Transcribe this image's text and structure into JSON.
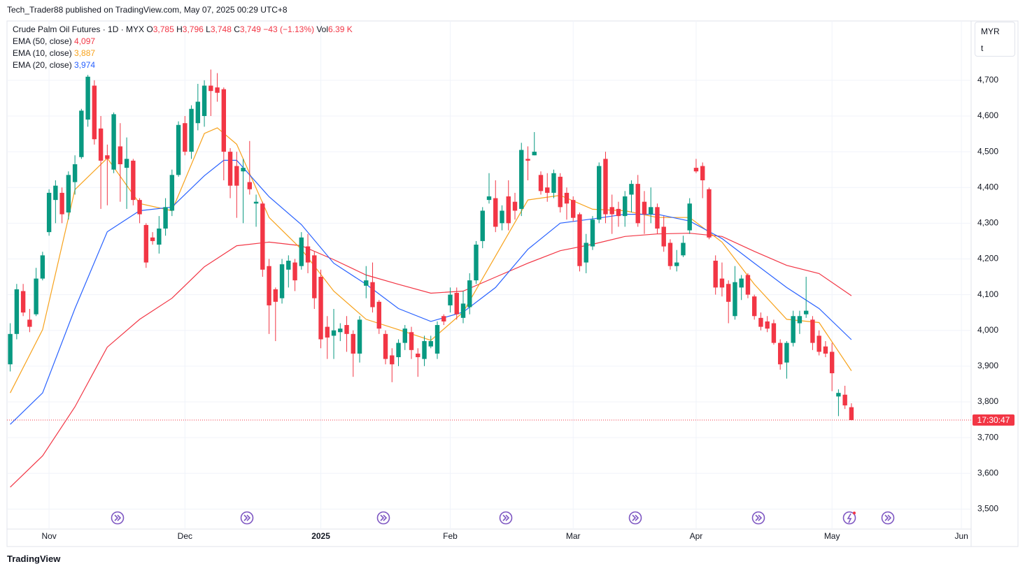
{
  "header": "Tech_Trader88 published on TradingView.com, May 07, 2025 00:29 UTC+8",
  "logo": "TradingView",
  "currency": "MYR",
  "unit": "t",
  "countdown": "17:30:47",
  "chart_data": {
    "type": "candlestick",
    "title": "Crude Palm Oil Futures · 1D · MYX",
    "legend_items": [
      {
        "key": "O",
        "value": "3,785"
      },
      {
        "key": "H",
        "value": "3,796"
      },
      {
        "key": "L",
        "value": "3,748"
      },
      {
        "key": "C",
        "value": "3,749"
      },
      {
        "value": "−43 (−1.13%)"
      },
      {
        "key": "Vol",
        "value": "6.39 K"
      }
    ],
    "up_color": "#089981",
    "down_color": "#f23645",
    "grid": true,
    "ylim": [
      3395,
      4866
    ],
    "yticks": [
      {
        "value": 3500,
        "label": "3,500"
      },
      {
        "value": 3600,
        "label": "3,600"
      },
      {
        "value": 3700,
        "label": "3,700"
      },
      {
        "value": 3800,
        "label": "3,800"
      },
      {
        "value": 3900,
        "label": "3,900"
      },
      {
        "value": 4000,
        "label": "4,000"
      },
      {
        "value": 4100,
        "label": "4,100"
      },
      {
        "value": 4200,
        "label": "4,200"
      },
      {
        "value": 4300,
        "label": "4,300"
      },
      {
        "value": 4400,
        "label": "4,400"
      },
      {
        "value": 4500,
        "label": "4,500"
      },
      {
        "value": 4600,
        "label": "4,600"
      },
      {
        "value": 4700,
        "label": "4,700"
      }
    ],
    "categories": [
      null,
      null,
      null,
      null,
      null,
      null,
      "Nov",
      null,
      null,
      null,
      null,
      null,
      null,
      null,
      null,
      null,
      null,
      null,
      null,
      null,
      null,
      null,
      null,
      null,
      null,
      null,
      null,
      "Dec",
      null,
      null,
      null,
      null,
      null,
      null,
      null,
      null,
      null,
      null,
      null,
      null,
      null,
      null,
      null,
      null,
      null,
      null,
      null,
      null,
      "2025",
      null,
      null,
      null,
      null,
      null,
      null,
      null,
      null,
      null,
      null,
      null,
      null,
      null,
      null,
      null,
      null,
      null,
      null,
      null,
      "Feb",
      null,
      null,
      null,
      null,
      null,
      null,
      null,
      null,
      null,
      null,
      null,
      null,
      null,
      null,
      null,
      null,
      null,
      null,
      "Mar",
      null,
      null,
      null,
      null,
      null,
      null,
      null,
      null,
      null,
      null,
      null,
      null,
      null,
      null,
      null,
      null,
      null,
      null,
      "Apr",
      null,
      null,
      null,
      null,
      null,
      null,
      null,
      null,
      null,
      null,
      null,
      null,
      null,
      null,
      null,
      null,
      null,
      null,
      null,
      null,
      "May",
      null,
      null,
      null,
      null,
      null,
      null,
      null,
      null,
      null,
      null,
      null,
      null,
      null,
      null,
      null,
      null,
      null,
      null,
      null,
      "Jun",
      null
    ],
    "open": [
      3905,
      3990,
      4110,
      4030,
      4045,
      4145,
      4275,
      4365,
      4385,
      4330,
      4415,
      4485,
      4590,
      4685,
      4565,
      4490,
      4450,
      4515,
      4455,
      4475,
      4365,
      4295,
      4260,
      4240,
      4285,
      4335,
      4435,
      4580,
      4500,
      4580,
      4600,
      4685,
      4680,
      4675,
      4500,
      4460,
      4445,
      4415,
      4355,
      4355,
      4180,
      4115,
      4090,
      4170,
      4190,
      4180,
      4235,
      4210,
      4150,
      4010,
      3985,
      3995,
      4015,
      3990,
      3935,
      4125,
      4135,
      4080,
      3990,
      3930,
      3925,
      3965,
      3995,
      3935,
      3920,
      3955,
      3935,
      4040,
      4070,
      4105,
      4035,
      4065,
      4140,
      4250,
      4365,
      4370,
      4300,
      4375,
      4360,
      4340,
      4480,
      4490,
      4435,
      4400,
      4385,
      4430,
      4385,
      4365,
      4325,
      4190,
      4235,
      4310,
      4480,
      4345,
      4340,
      4320,
      4380,
      4410,
      4360,
      4325,
      4345,
      4290,
      4245,
      4180,
      4210,
      4280,
      4455,
      4460,
      4395,
      4195,
      4145,
      4130,
      4040,
      4120,
      4155,
      4095,
      4035,
      4025,
      4020,
      3965,
      3910,
      3965,
      4020,
      4045,
      4030,
      3985,
      3955,
      3940,
      3815,
      3820,
      3785,
      null,
      null,
      null,
      null,
      null,
      null,
      null,
      null,
      null,
      null,
      null,
      null,
      null,
      null,
      null,
      null,
      null,
      null
    ],
    "high": [
      4020,
      4130,
      4130,
      4060,
      4175,
      4220,
      4395,
      4420,
      4400,
      4445,
      4490,
      4620,
      4715,
      4700,
      4600,
      4520,
      4610,
      4580,
      4540,
      4480,
      4370,
      4300,
      4275,
      4320,
      4370,
      4450,
      4585,
      4600,
      4630,
      4690,
      4700,
      4730,
      4720,
      4680,
      4510,
      4500,
      4480,
      4530,
      4380,
      4360,
      4200,
      4120,
      4200,
      4210,
      4200,
      4275,
      4270,
      4220,
      4170,
      4040,
      4060,
      4020,
      4040,
      4000,
      4040,
      4180,
      4190,
      4085,
      4000,
      3950,
      3975,
      4015,
      4010,
      3950,
      3985,
      3985,
      4025,
      4045,
      4120,
      4120,
      4110,
      4160,
      4250,
      4345,
      4440,
      4420,
      4350,
      4420,
      4385,
      4525,
      4515,
      4555,
      4445,
      4440,
      4450,
      4440,
      4400,
      4375,
      4330,
      4270,
      4320,
      4470,
      4500,
      4380,
      4360,
      4390,
      4420,
      4435,
      4390,
      4400,
      4355,
      4320,
      4255,
      4225,
      4265,
      4370,
      4480,
      4470,
      4400,
      4210,
      4190,
      4140,
      4180,
      4155,
      4160,
      4100,
      4050,
      4040,
      4030,
      3975,
      3970,
      4055,
      4055,
      4150,
      4040,
      4000,
      3970,
      3965,
      3835,
      3845,
      3796,
      null,
      null,
      null,
      null,
      null,
      null,
      null,
      null,
      null,
      null,
      null,
      null,
      null,
      null,
      null,
      null,
      null,
      null
    ],
    "low": [
      3885,
      3975,
      4040,
      3995,
      4040,
      4140,
      4265,
      4300,
      4300,
      4310,
      4380,
      4480,
      4570,
      4520,
      4340,
      4350,
      4440,
      4360,
      4340,
      4350,
      4300,
      4175,
      4240,
      4215,
      4265,
      4320,
      4430,
      4490,
      4480,
      4560,
      4570,
      4600,
      4640,
      4420,
      4370,
      4315,
      4300,
      4380,
      4290,
      4150,
      3990,
      3970,
      4075,
      4120,
      4110,
      4170,
      4160,
      4060,
      3950,
      3920,
      3920,
      3970,
      3940,
      3870,
      3910,
      4090,
      4050,
      3990,
      3905,
      3855,
      3900,
      3945,
      3920,
      3870,
      3900,
      3950,
      3920,
      4015,
      4050,
      4030,
      4020,
      4045,
      4130,
      4230,
      4355,
      4275,
      4280,
      4280,
      4310,
      4320,
      4420,
      4490,
      4380,
      4360,
      4370,
      4330,
      4310,
      4305,
      4165,
      4160,
      4225,
      4300,
      4300,
      4270,
      4290,
      4290,
      4330,
      4290,
      4270,
      4300,
      4270,
      4220,
      4170,
      4165,
      4205,
      4270,
      4440,
      4370,
      4255,
      4100,
      4095,
      4020,
      4030,
      4085,
      4090,
      4030,
      4000,
      3995,
      3960,
      3890,
      3865,
      3955,
      3990,
      4035,
      3945,
      3930,
      3925,
      3830,
      3760,
      3780,
      3748,
      null,
      null,
      null,
      null,
      null,
      null,
      null,
      null,
      null,
      null,
      null,
      null,
      null,
      null,
      null,
      null,
      null,
      null
    ],
    "close": [
      3990,
      4115,
      4050,
      4010,
      4145,
      4210,
      4385,
      4405,
      4325,
      4435,
      4465,
      4615,
      4710,
      4535,
      4475,
      4480,
      4605,
      4465,
      4480,
      4365,
      4325,
      4190,
      4250,
      4285,
      4345,
      4435,
      4575,
      4500,
      4620,
      4640,
      4685,
      4670,
      4665,
      4500,
      4405,
      4405,
      4455,
      4395,
      4360,
      4170,
      4070,
      4080,
      4185,
      4195,
      4140,
      4260,
      4190,
      4090,
      3975,
      3980,
      4000,
      4005,
      3990,
      3935,
      4030,
      4140,
      4065,
      4005,
      3920,
      3905,
      3965,
      4005,
      3945,
      3925,
      3970,
      3970,
      4015,
      4025,
      4100,
      4045,
      4075,
      4140,
      4240,
      4335,
      4375,
      4290,
      4335,
      4300,
      4335,
      4505,
      4475,
      4500,
      4390,
      4385,
      4440,
      4345,
      4355,
      4315,
      4180,
      4245,
      4310,
      4460,
      4325,
      4325,
      4320,
      4375,
      4410,
      4300,
      4325,
      4345,
      4285,
      4235,
      4180,
      4190,
      4245,
      4355,
      4445,
      4420,
      4260,
      4120,
      4120,
      4080,
      4135,
      4145,
      4100,
      4040,
      4010,
      4005,
      3965,
      3905,
      3965,
      4040,
      4040,
      4055,
      3965,
      3940,
      3935,
      3880,
      3825,
      3790,
      3749,
      null,
      null,
      null,
      null,
      null,
      null,
      null,
      null,
      null,
      null,
      null,
      null,
      null,
      null,
      null,
      null,
      null,
      null
    ],
    "lines": [
      {
        "name": "EMA (50, close)",
        "last_label": "4,097",
        "color": "#f23645",
        "x": [
          0,
          5,
          10,
          15,
          20,
          25,
          30,
          35,
          40,
          45,
          50,
          55,
          60,
          65,
          70,
          75,
          80,
          85,
          90,
          95,
          100,
          105,
          110,
          115,
          120,
          125,
          130
        ],
        "values": [
          3561,
          3649,
          3786,
          3953,
          4031,
          4090,
          4178,
          4237,
          4247,
          4237,
          4198,
          4155,
          4129,
          4104,
          4110,
          4149,
          4188,
          4223,
          4241,
          4263,
          4270,
          4272,
          4263,
          4221,
          4182,
          4159,
          4097
        ]
      },
      {
        "name": "EMA (10, close)",
        "last_label": "3,887",
        "color": "#f7a21b",
        "x": [
          0,
          5,
          10,
          15,
          20,
          25,
          30,
          32,
          35,
          40,
          45,
          50,
          55,
          60,
          65,
          70,
          75,
          80,
          85,
          90,
          95,
          100,
          105,
          110,
          115,
          120,
          125,
          130
        ],
        "values": [
          3825,
          4002,
          4394,
          4482,
          4355,
          4335,
          4551,
          4567,
          4521,
          4316,
          4227,
          4110,
          4031,
          4002,
          3972,
          4051,
          4208,
          4365,
          4378,
          4339,
          4335,
          4316,
          4316,
          4247,
          4129,
          4031,
          4022,
          3887
        ]
      },
      {
        "name": "EMA (20, close)",
        "last_label": "3,974",
        "color": "#2962ff",
        "x": [
          0,
          5,
          10,
          15,
          20,
          25,
          30,
          33,
          35,
          40,
          45,
          50,
          55,
          60,
          65,
          70,
          75,
          80,
          85,
          90,
          95,
          100,
          105,
          110,
          115,
          120,
          125,
          130
        ],
        "values": [
          3737,
          3825,
          4061,
          4276,
          4335,
          4345,
          4433,
          4476,
          4476,
          4374,
          4296,
          4188,
          4129,
          4061,
          4025,
          4051,
          4120,
          4227,
          4300,
          4312,
          4325,
          4325,
          4306,
          4257,
          4188,
          4120,
          4061,
          3974
        ]
      }
    ]
  }
}
